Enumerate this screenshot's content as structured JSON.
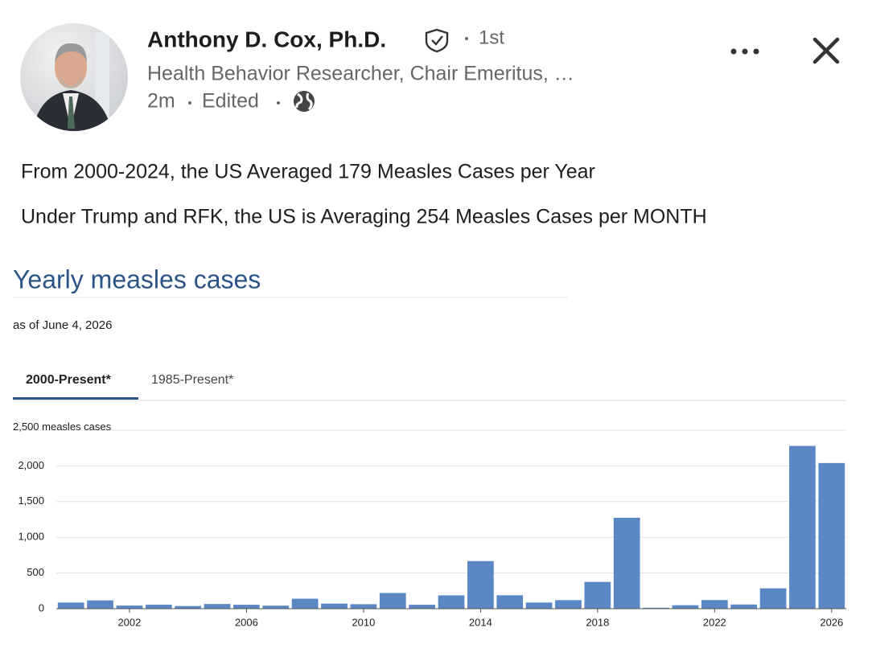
{
  "post": {
    "author": "Anthony D. Cox, Ph.D.",
    "degree": "1st",
    "headline": "Health Behavior Researcher, Chair Emeritus, …",
    "time": "2m",
    "edited": "Edited",
    "body": [
      "From 2000-2024, the US Averaged 179 Measles Cases per Year",
      "Under Trump and RFK, the US is Averaging 254 Measles Cases per MONTH"
    ]
  },
  "embed": {
    "subtitle": "as of June 4, 2026",
    "tabs": [
      "2000-Present*",
      "1985-Present*"
    ],
    "active_tab": 0
  },
  "chart_data": {
    "type": "bar",
    "title": "Yearly measles cases",
    "color": "#5b87c5",
    "grid": true,
    "x": [
      2000,
      2001,
      2002,
      2003,
      2004,
      2005,
      2006,
      2007,
      2008,
      2009,
      2010,
      2011,
      2012,
      2013,
      2014,
      2015,
      2016,
      2017,
      2018,
      2019,
      2020,
      2021,
      2022,
      2023,
      2024,
      2025,
      2026
    ],
    "values": [
      86,
      116,
      44,
      56,
      37,
      66,
      55,
      43,
      140,
      71,
      63,
      220,
      55,
      187,
      667,
      188,
      86,
      120,
      375,
      1274,
      13,
      49,
      121,
      59,
      285,
      2280,
      2040
    ],
    "xlim": [
      1999.5,
      2026.5
    ],
    "xticks": [
      2002,
      2006,
      2010,
      2014,
      2018,
      2022,
      2026
    ],
    "ylim": [
      0,
      2500
    ],
    "yticks": [
      0,
      500,
      {
        "value": 1000,
        "label": "1,000"
      },
      {
        "value": 1500,
        "label": "1,500"
      },
      {
        "value": 2000,
        "label": "2,000"
      },
      {
        "value": 2500,
        "label": "2,500 measles cases"
      }
    ]
  }
}
